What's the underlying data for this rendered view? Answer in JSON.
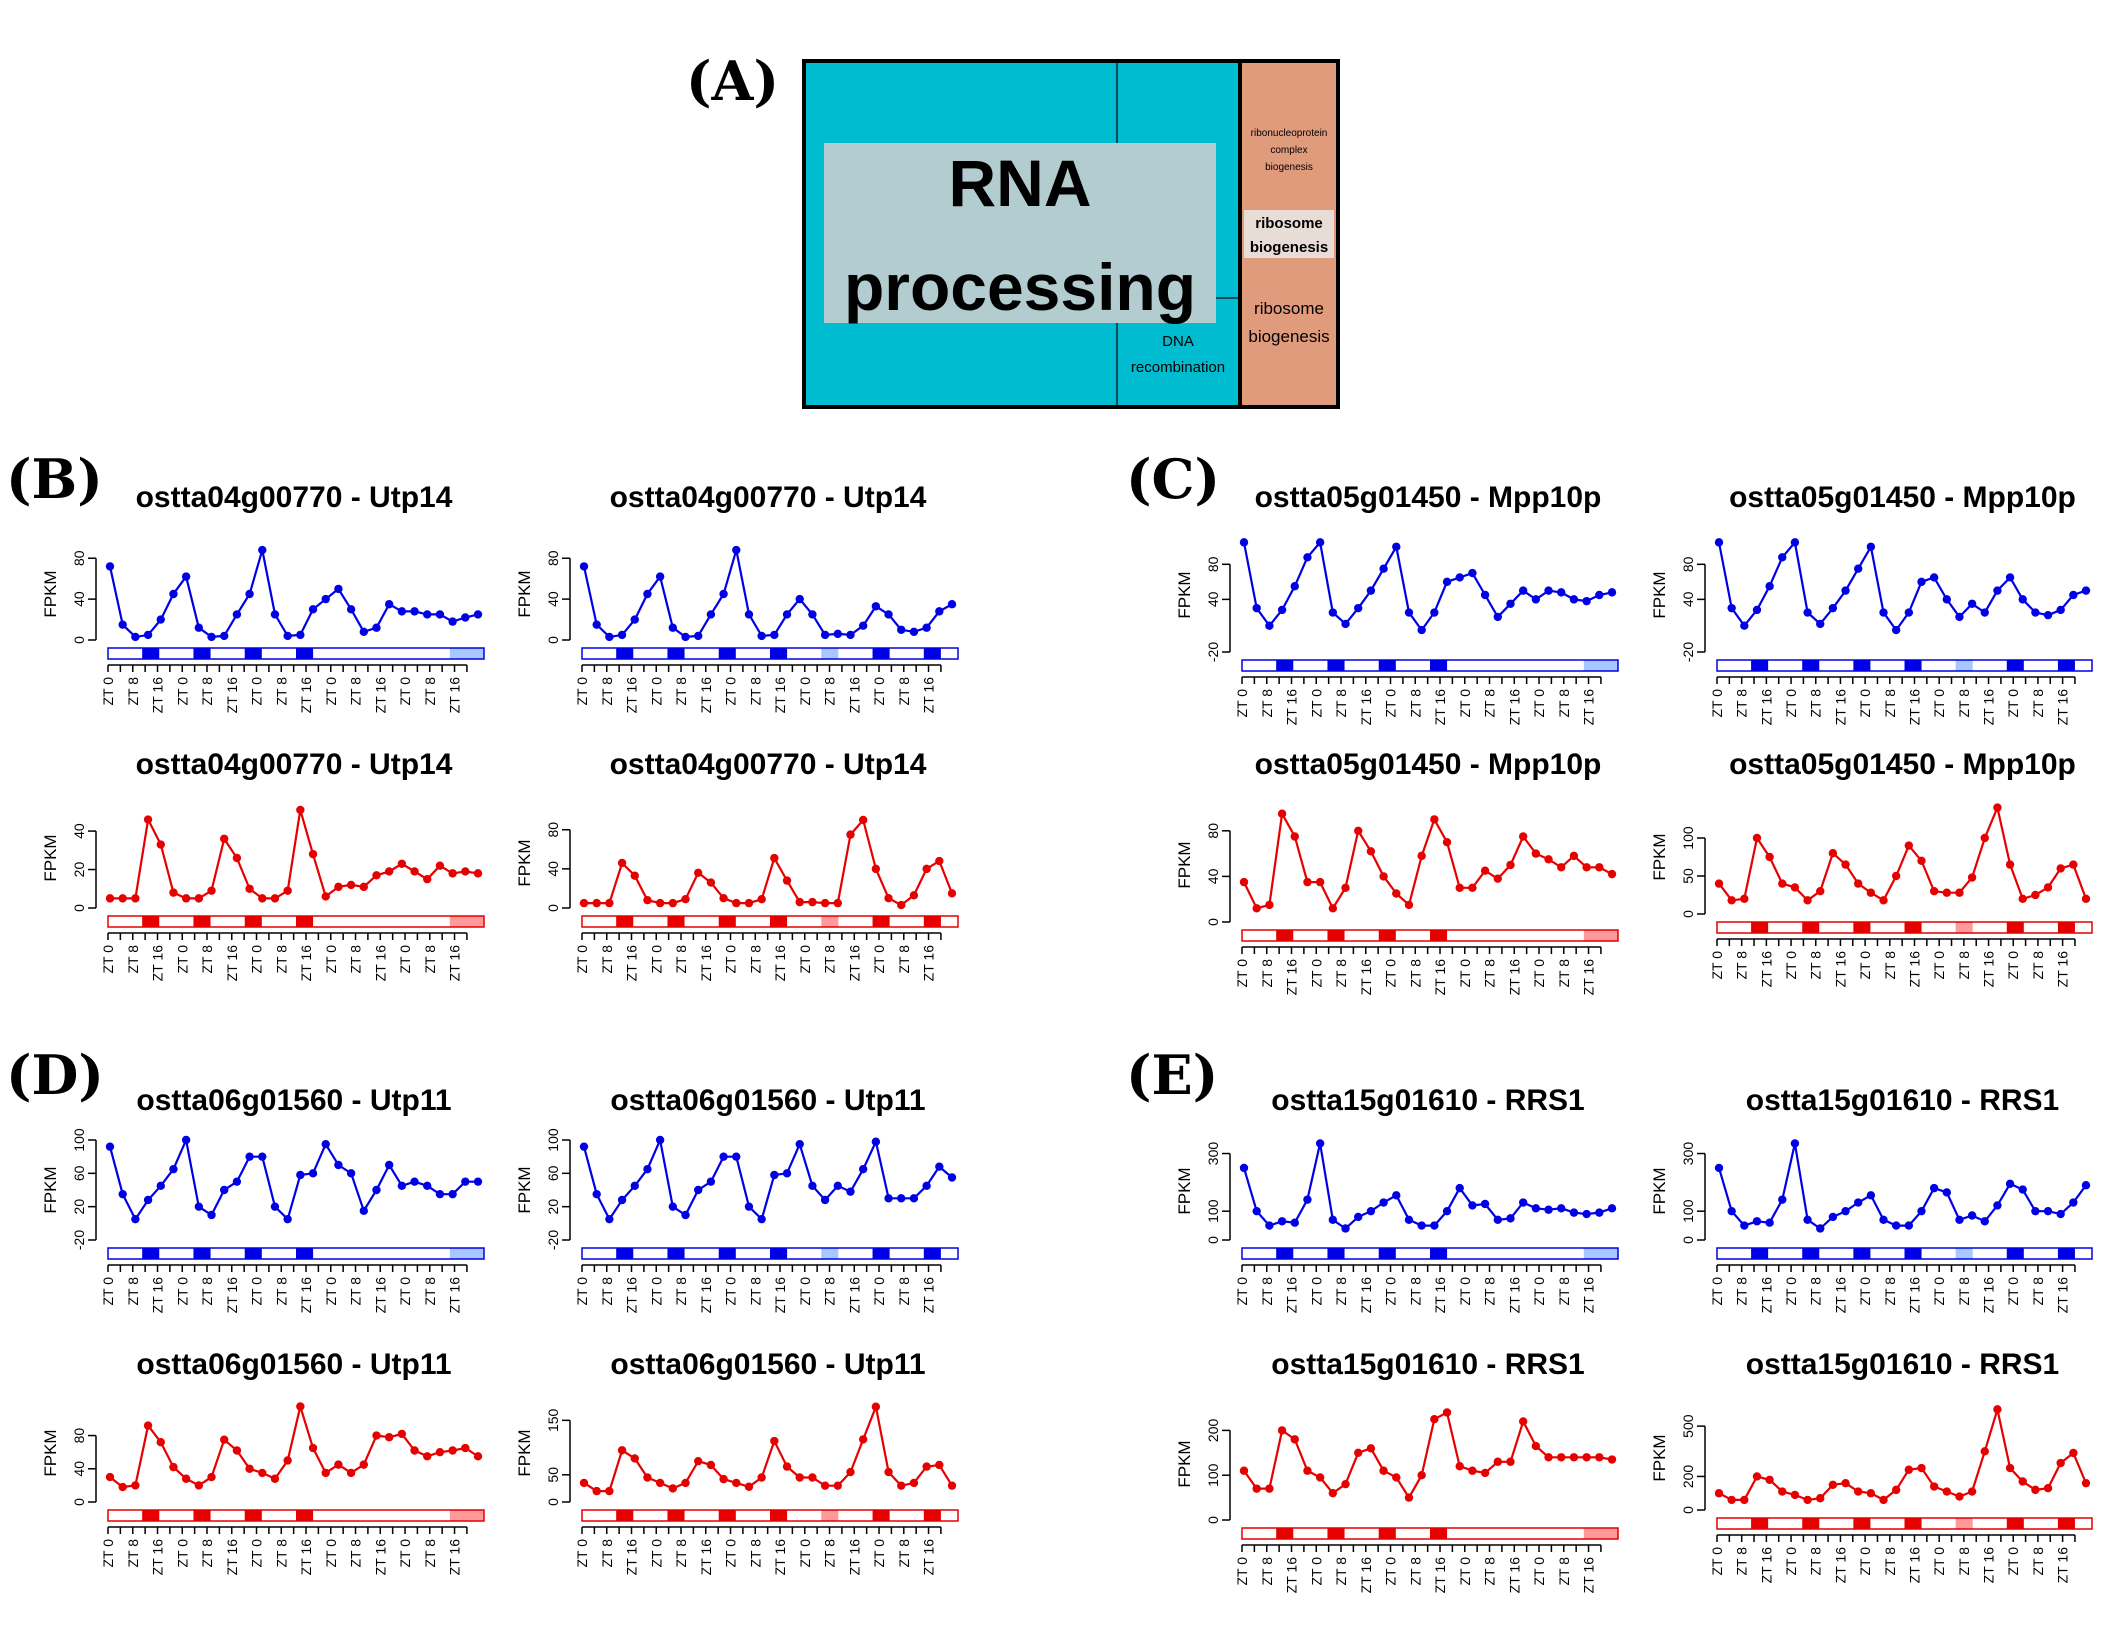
{
  "panel_labels": [
    "(A)",
    "(B)",
    "(C)",
    "(D)",
    "(E)"
  ],
  "treemap": {
    "main_label_1": "RNA",
    "main_label_2": "processing",
    "dna_label_1": "DNA",
    "dna_label_2": "recombination",
    "rcb_1": "ribonucleoprotein",
    "rcb_2": "complex",
    "rcb_3": "biogenesis",
    "rb_small_1": "ribosome",
    "rb_small_2": "biogenesis",
    "rb_big_1": "ribosome",
    "rb_big_2": "biogenesis",
    "colors": {
      "main": "#00bcd0",
      "overlay": "#b2cccf",
      "orange": "#e09a7c"
    }
  },
  "ylabel": "FPKM",
  "x_tick_labels": [
    "ZT 0",
    "ZT 8",
    "ZT 16",
    "ZT 0",
    "ZT 8",
    "ZT 16",
    "ZT 0",
    "ZT 8",
    "ZT 16",
    "ZT 0",
    "ZT 8",
    "ZT 16",
    "ZT 0",
    "ZT 8",
    "ZT 16"
  ],
  "colors": {
    "blue": "#0000e6",
    "red": "#e60000",
    "blue_light": "#a6c8ff",
    "red_light": "#ff9a9a"
  },
  "chart_data": [
    {
      "panel": "B",
      "title": "ostta04g00770 - Utp14",
      "type": "line",
      "color": "blue",
      "ylim": [
        0,
        90
      ],
      "yticks": [
        0,
        40,
        80
      ],
      "bar": "A",
      "values": [
        72,
        15,
        3,
        5,
        20,
        45,
        62,
        12,
        3,
        4,
        25,
        45,
        88,
        25,
        4,
        5,
        30,
        40,
        50,
        30,
        8,
        12,
        35,
        28,
        28,
        25,
        25,
        18,
        22,
        25
      ]
    },
    {
      "panel": "B",
      "title": "ostta04g00770 - Utp14",
      "type": "line",
      "color": "blue",
      "ylim": [
        0,
        90
      ],
      "yticks": [
        0,
        40,
        80
      ],
      "bar": "B",
      "values": [
        72,
        15,
        3,
        5,
        20,
        45,
        62,
        12,
        3,
        4,
        25,
        45,
        88,
        25,
        4,
        5,
        25,
        40,
        25,
        5,
        6,
        5,
        14,
        33,
        25,
        10,
        8,
        12,
        28,
        35
      ]
    },
    {
      "panel": "C",
      "title": "ostta05g01450 - Mpp10p",
      "type": "line",
      "color": "blue",
      "ylim": [
        -20,
        110
      ],
      "yticks": [
        -20,
        40,
        80
      ],
      "bar": "A",
      "values": [
        105,
        30,
        10,
        28,
        55,
        88,
        105,
        25,
        12,
        30,
        50,
        75,
        100,
        25,
        5,
        25,
        60,
        65,
        70,
        45,
        20,
        35,
        50,
        40,
        50,
        48,
        40,
        38,
        45,
        48
      ]
    },
    {
      "panel": "C",
      "title": "ostta05g01450 - Mpp10p",
      "type": "line",
      "color": "blue",
      "ylim": [
        -20,
        110
      ],
      "yticks": [
        -20,
        40,
        80
      ],
      "bar": "B",
      "values": [
        105,
        30,
        10,
        28,
        55,
        88,
        105,
        25,
        12,
        30,
        50,
        75,
        100,
        25,
        5,
        25,
        60,
        65,
        40,
        20,
        35,
        25,
        50,
        65,
        40,
        25,
        22,
        28,
        45,
        50
      ]
    },
    {
      "panel": "B",
      "title": "ostta04g00770 - Utp14",
      "type": "line",
      "color": "red",
      "ylim": [
        0,
        52
      ],
      "yticks": [
        0,
        20,
        40
      ],
      "bar": "A",
      "values": [
        5,
        5,
        5,
        46,
        33,
        8,
        5,
        5,
        9,
        36,
        26,
        10,
        5,
        5,
        9,
        51,
        28,
        6,
        11,
        12,
        11,
        17,
        19,
        23,
        19,
        15,
        22,
        18,
        19,
        18
      ]
    },
    {
      "panel": "B",
      "title": "ostta04g00770 - Utp14",
      "type": "line",
      "color": "red",
      "ylim": [
        0,
        92
      ],
      "yticks": [
        0,
        40,
        80
      ],
      "bar": "B",
      "values": [
        5,
        5,
        5,
        46,
        33,
        8,
        5,
        5,
        9,
        36,
        26,
        10,
        5,
        5,
        9,
        51,
        28,
        6,
        6,
        5,
        5,
        75,
        90,
        40,
        10,
        3,
        13,
        40,
        48,
        15
      ]
    },
    {
      "panel": "C",
      "title": "ostta05g01450 - Mpp10p",
      "type": "line",
      "color": "red",
      "ylim": [
        0,
        100
      ],
      "yticks": [
        0,
        40,
        80
      ],
      "bar": "A",
      "values": [
        35,
        12,
        15,
        95,
        75,
        35,
        35,
        12,
        30,
        80,
        62,
        40,
        25,
        15,
        58,
        90,
        70,
        30,
        30,
        45,
        38,
        50,
        75,
        60,
        55,
        48,
        58,
        48,
        48,
        42
      ]
    },
    {
      "panel": "C",
      "title": "ostta05g01450 - Mpp10p",
      "type": "line",
      "color": "red",
      "ylim": [
        0,
        150
      ],
      "yticks": [
        0,
        50,
        100
      ],
      "bar": "B",
      "values": [
        40,
        18,
        20,
        100,
        75,
        40,
        35,
        18,
        30,
        80,
        65,
        40,
        28,
        18,
        50,
        90,
        70,
        30,
        28,
        28,
        48,
        100,
        140,
        65,
        20,
        25,
        35,
        60,
        65,
        20
      ]
    },
    {
      "panel": "D",
      "title": "ostta06g01560 - Utp11",
      "type": "line",
      "color": "blue",
      "ylim": [
        -20,
        100
      ],
      "yticks": [
        -20,
        20,
        60,
        100
      ],
      "bar": "A",
      "values": [
        92,
        35,
        5,
        28,
        45,
        65,
        100,
        20,
        10,
        40,
        50,
        80,
        80,
        20,
        5,
        58,
        60,
        95,
        70,
        60,
        15,
        40,
        70,
        45,
        50,
        45,
        35,
        35,
        50,
        50
      ]
    },
    {
      "panel": "D",
      "title": "ostta06g01560 - Utp11",
      "type": "line",
      "color": "blue",
      "ylim": [
        -20,
        100
      ],
      "yticks": [
        -20,
        20,
        60,
        100
      ],
      "bar": "B",
      "values": [
        92,
        35,
        5,
        28,
        45,
        65,
        100,
        20,
        10,
        40,
        50,
        80,
        80,
        20,
        5,
        58,
        60,
        95,
        45,
        28,
        45,
        38,
        65,
        98,
        30,
        30,
        30,
        45,
        68,
        55
      ]
    },
    {
      "panel": "E",
      "title": "ostta15g01610 - RRS1",
      "type": "line",
      "color": "blue",
      "ylim": [
        0,
        340
      ],
      "yticks": [
        0,
        100,
        300
      ],
      "bar": "A",
      "values": [
        250,
        100,
        50,
        65,
        60,
        140,
        335,
        70,
        40,
        80,
        100,
        130,
        155,
        70,
        50,
        50,
        100,
        180,
        120,
        125,
        70,
        75,
        130,
        110,
        105,
        110,
        95,
        90,
        95,
        110
      ]
    },
    {
      "panel": "E",
      "title": "ostta15g01610 - RRS1",
      "type": "line",
      "color": "blue",
      "ylim": [
        0,
        340
      ],
      "yticks": [
        0,
        100,
        300
      ],
      "bar": "B",
      "values": [
        250,
        100,
        50,
        65,
        60,
        140,
        335,
        70,
        40,
        80,
        100,
        130,
        155,
        70,
        50,
        50,
        100,
        180,
        165,
        70,
        85,
        65,
        120,
        195,
        175,
        100,
        100,
        90,
        130,
        190
      ]
    },
    {
      "panel": "D",
      "title": "ostta06g01560 - Utp11",
      "type": "line",
      "color": "red",
      "ylim": [
        0,
        118
      ],
      "yticks": [
        0,
        40,
        80
      ],
      "bar": "A",
      "values": [
        30,
        18,
        20,
        92,
        72,
        42,
        28,
        20,
        30,
        75,
        62,
        40,
        35,
        28,
        50,
        115,
        65,
        35,
        45,
        35,
        45,
        80,
        78,
        82,
        62,
        55,
        60,
        62,
        65,
        55
      ]
    },
    {
      "panel": "D",
      "title": "ostta06g01560 - Utp11",
      "type": "line",
      "color": "red",
      "ylim": [
        0,
        180
      ],
      "yticks": [
        0,
        50,
        150
      ],
      "bar": "B",
      "values": [
        35,
        20,
        20,
        95,
        80,
        45,
        35,
        25,
        35,
        75,
        68,
        42,
        35,
        28,
        45,
        112,
        65,
        45,
        45,
        30,
        30,
        55,
        115,
        175,
        55,
        30,
        35,
        65,
        68,
        30
      ]
    },
    {
      "panel": "E",
      "title": "ostta15g01610 - RRS1",
      "type": "line",
      "color": "red",
      "ylim": [
        0,
        250
      ],
      "yticks": [
        0,
        100,
        200
      ],
      "bar": "A",
      "values": [
        110,
        70,
        70,
        200,
        180,
        110,
        95,
        60,
        80,
        150,
        160,
        110,
        95,
        50,
        100,
        225,
        240,
        120,
        110,
        105,
        130,
        130,
        220,
        165,
        140,
        140,
        140,
        140,
        140,
        135
      ]
    },
    {
      "panel": "E",
      "title": "ostta15g01610 - RRS1",
      "type": "line",
      "color": "red",
      "ylim": [
        0,
        620
      ],
      "yticks": [
        0,
        200,
        500
      ],
      "bar": "B",
      "values": [
        100,
        60,
        60,
        200,
        180,
        110,
        90,
        60,
        70,
        150,
        160,
        110,
        100,
        60,
        120,
        240,
        250,
        140,
        110,
        80,
        110,
        350,
        600,
        250,
        170,
        120,
        130,
        280,
        340,
        160
      ]
    }
  ]
}
